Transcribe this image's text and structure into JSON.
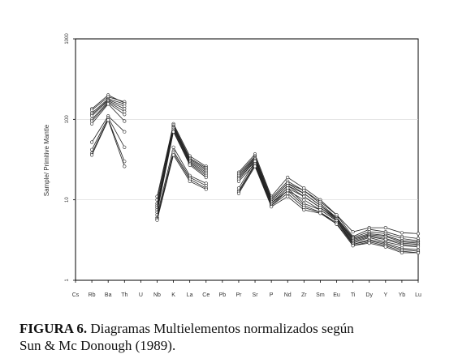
{
  "chart_data": {
    "type": "line",
    "title": "",
    "xlabel": "",
    "ylabel": "Sample/ Primitive Mantle",
    "yscale": "log",
    "ylim": [
      1,
      1000
    ],
    "yticks": [
      "1",
      "10",
      "100",
      "1000"
    ],
    "categories": [
      "Cs",
      "Rb",
      "Ba",
      "Th",
      "U",
      "Nb",
      "K",
      "La",
      "Ce",
      "Pb",
      "Pr",
      "Sr",
      "P",
      "Nd",
      "Zr",
      "Sm",
      "Eu",
      "Ti",
      "Dy",
      "Y",
      "Yb",
      "Lu"
    ],
    "grid": true,
    "legend": "none",
    "series": [
      {
        "values": [
          null,
          135,
          200,
          160,
          null,
          11,
          88,
          35,
          26,
          null,
          22,
          37,
          11,
          19,
          14,
          10,
          6.5,
          4.0,
          4.5,
          4.5,
          3.9,
          3.8
        ]
      },
      {
        "values": [
          null,
          130,
          190,
          165,
          null,
          10,
          85,
          33,
          25,
          null,
          21,
          35,
          10.5,
          17,
          13,
          9.5,
          6.5,
          3.5,
          4.3,
          4.0,
          3.5,
          3.3
        ]
      },
      {
        "values": [
          null,
          120,
          180,
          155,
          null,
          9,
          82,
          32,
          24,
          null,
          20,
          34,
          10,
          16,
          13,
          9,
          6,
          3.4,
          4.0,
          3.8,
          3.3,
          3.1
        ]
      },
      {
        "values": [
          null,
          115,
          175,
          145,
          null,
          8.5,
          80,
          31,
          23,
          null,
          19,
          33,
          10,
          16,
          12,
          8.5,
          6,
          3.3,
          3.8,
          3.6,
          3.1,
          3.0
        ]
      },
      {
        "values": [
          null,
          110,
          170,
          135,
          null,
          8,
          78,
          30,
          22,
          null,
          19,
          32,
          9.5,
          15,
          12,
          8.5,
          5.8,
          3.2,
          3.7,
          3.5,
          3.0,
          2.9
        ]
      },
      {
        "values": [
          null,
          100,
          165,
          125,
          null,
          8,
          75,
          29,
          21,
          null,
          18,
          31,
          9.5,
          15,
          11,
          8,
          5.8,
          3.1,
          3.6,
          3.3,
          2.9,
          2.8
        ]
      },
      {
        "values": [
          null,
          95,
          160,
          115,
          null,
          7.5,
          72,
          28,
          20,
          null,
          18,
          30,
          9,
          14,
          11,
          8,
          5.6,
          3.0,
          3.5,
          3.2,
          2.8,
          2.7
        ]
      },
      {
        "values": [
          null,
          88,
          155,
          95,
          null,
          7,
          70,
          27,
          19,
          null,
          17,
          28,
          9,
          13,
          10,
          7.5,
          5.5,
          2.9,
          3.4,
          3.0,
          2.7,
          2.6
        ]
      },
      {
        "values": [
          null,
          52,
          110,
          70,
          null,
          6.5,
          45,
          20,
          16,
          null,
          14,
          30,
          9,
          14,
          9,
          7.5,
          5.5,
          2.8,
          3.2,
          2.9,
          2.5,
          2.4
        ]
      },
      {
        "values": [
          null,
          42,
          105,
          45,
          null,
          6,
          40,
          19,
          15,
          null,
          13,
          28,
          8.5,
          13,
          8.5,
          7,
          5.2,
          2.8,
          3.1,
          2.8,
          2.4,
          2.3
        ]
      },
      {
        "values": [
          null,
          38,
          100,
          30,
          null,
          5.8,
          38,
          18,
          14,
          null,
          12.5,
          27,
          8.5,
          12,
          8,
          7,
          5,
          2.7,
          3.0,
          2.7,
          2.3,
          2.2
        ]
      },
      {
        "values": [
          null,
          36,
          98,
          26,
          null,
          5.6,
          36,
          17,
          13.5,
          null,
          12,
          26,
          8.2,
          11,
          7.5,
          6.8,
          5,
          2.7,
          2.9,
          2.6,
          2.2,
          2.2
        ]
      }
    ]
  },
  "caption": {
    "label": "FIGURA 6.",
    "text": "Diagramas Multielementos normalizados según",
    "line2": "Sun & Mc Donough (1989)."
  }
}
